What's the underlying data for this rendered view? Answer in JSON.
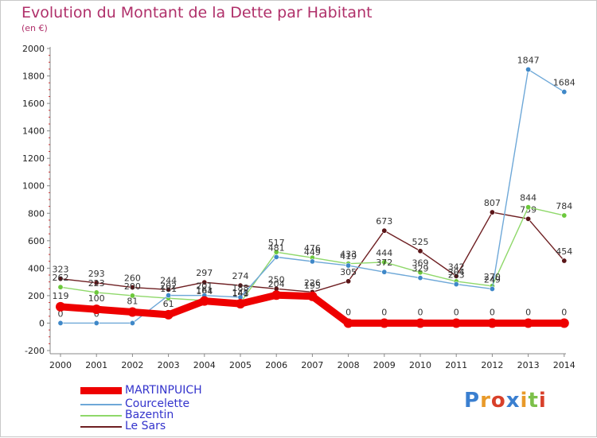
{
  "header": {
    "title": "Evolution du Montant de la Dette par Habitant",
    "subtitle": "(en €)"
  },
  "logo": {
    "text": "Proxiti",
    "letter_colors": [
      "#3a7fd0",
      "#e89a2a",
      "#d8402a",
      "#3a7fd0",
      "#e89a2a",
      "#7cc04a",
      "#d8402a"
    ]
  },
  "chart_data": {
    "type": "line",
    "title": "Evolution du Montant de la Dette par Habitant",
    "subtitle": "(en €)",
    "xlabel": "",
    "ylabel": "",
    "x": [
      "2000",
      "2001",
      "2002",
      "2003",
      "2004",
      "2005",
      "2006",
      "2007",
      "2008",
      "2009",
      "2010",
      "2011",
      "2012",
      "2013",
      "2014"
    ],
    "ylim": [
      -200,
      2000
    ],
    "yticks": [
      "-200",
      "0",
      "200",
      "400",
      "600",
      "800",
      "1000",
      "1200",
      "1400",
      "1600",
      "1800",
      "2000"
    ],
    "grid": false,
    "legend_position": "bottom-left",
    "series": [
      {
        "name": "Le Sars",
        "color": "#6e1f22",
        "point_color": "#5a1518",
        "values": [
          323,
          293,
          260,
          244,
          297,
          274,
          250,
          226,
          305,
          673,
          525,
          342,
          807,
          759,
          454
        ],
        "labels": [
          "323",
          "293",
          "260",
          "244",
          "297",
          "274",
          "250",
          "226",
          "305",
          "673",
          "525",
          "342",
          "807",
          "759",
          "454"
        ]
      },
      {
        "name": "Bazentin",
        "color": "#8fd86a",
        "point_color": "#6cc83c",
        "values": [
          262,
          223,
          200,
          181,
          164,
          148,
          517,
          476,
          433,
          444,
          369,
          304,
          270,
          844,
          784
        ],
        "labels": [
          "262",
          "223",
          "200",
          "181",
          "164",
          "148",
          "517",
          "476",
          "433",
          "444",
          "369",
          "304",
          "270",
          "844",
          "784"
        ]
      },
      {
        "name": "Courcelette",
        "color": "#6ea8d8",
        "point_color": "#3f88c8",
        "values": [
          0,
          0,
          0,
          202,
          201,
          188,
          481,
          449,
          419,
          372,
          329,
          283,
          249,
          1847,
          1684
        ],
        "labels": [
          "0",
          "0",
          "0",
          "202",
          "201",
          "188",
          "481",
          "449",
          "419",
          "372",
          "329",
          "283",
          "249",
          "1847",
          "1684"
        ]
      },
      {
        "name": "MARTINPUICH",
        "color": "#ee0000",
        "point_color": "#ee0000",
        "values": [
          119,
          100,
          81,
          61,
          161,
          141,
          204,
          195,
          0,
          0,
          0,
          0,
          0,
          0,
          0
        ],
        "labels": [
          "119",
          "100",
          "81",
          "61",
          "161",
          "141",
          "204",
          "195",
          "0",
          "0",
          "0",
          "0",
          "0",
          "0",
          "0"
        ]
      }
    ]
  },
  "legend": {
    "items": [
      {
        "name": "MARTINPUICH",
        "color": "#ee0000"
      },
      {
        "name": "Courcelette",
        "color": "#6ea8d8"
      },
      {
        "name": "Bazentin",
        "color": "#8fd86a"
      },
      {
        "name": "Le Sars",
        "color": "#6e1f22"
      }
    ]
  }
}
